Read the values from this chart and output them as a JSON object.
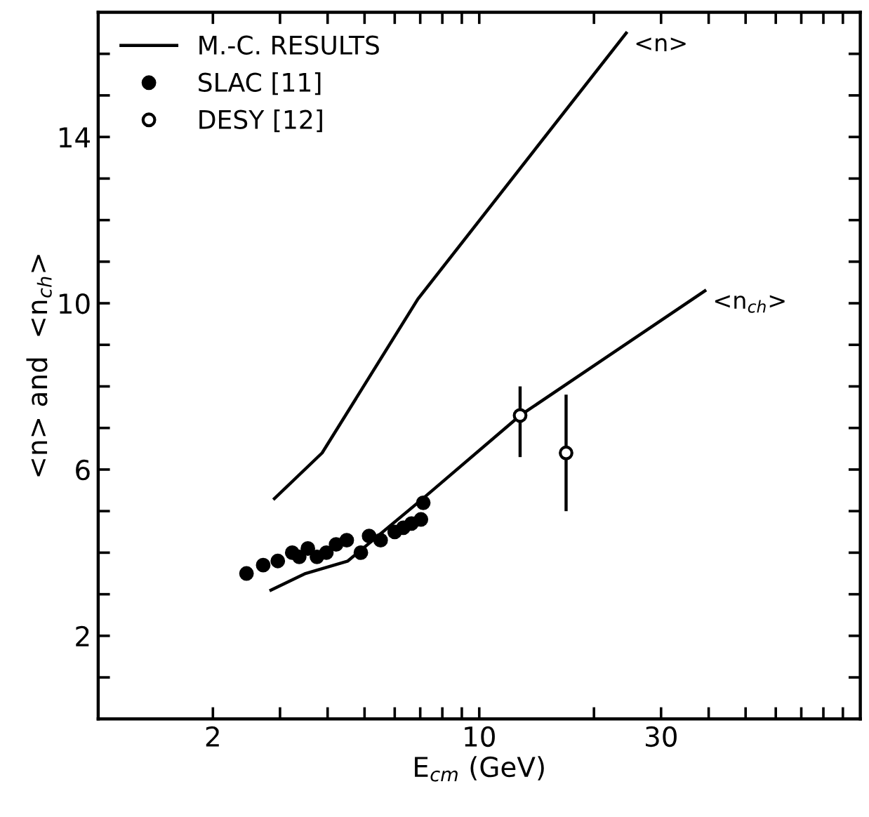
{
  "chart_data": {
    "type": "line",
    "xlabel": "E$_{cm}$ (GeV)",
    "ylabel": "<n> and  <n$_{ch}$>",
    "log": "x",
    "xlim": [
      1,
      100
    ],
    "ylim": [
      0,
      17
    ],
    "xticks": [
      {
        "value": 2,
        "label": "2"
      },
      {
        "value": 3,
        "label": null
      },
      {
        "value": 4,
        "label": null
      },
      {
        "value": 5,
        "label": null
      },
      {
        "value": 6,
        "label": null
      },
      {
        "value": 7,
        "label": null
      },
      {
        "value": 8,
        "label": null
      },
      {
        "value": 9,
        "label": null
      },
      {
        "value": 10,
        "label": "10"
      },
      {
        "value": 20,
        "label": null
      },
      {
        "value": 30,
        "label": "30"
      },
      {
        "value": 40,
        "label": null
      },
      {
        "value": 50,
        "label": null
      },
      {
        "value": 60,
        "label": null
      },
      {
        "value": 70,
        "label": null
      },
      {
        "value": 80,
        "label": null
      },
      {
        "value": 90,
        "label": null
      }
    ],
    "yticks": [
      {
        "value": 1,
        "label": null
      },
      {
        "value": 2,
        "label": "2"
      },
      {
        "value": 3,
        "label": null
      },
      {
        "value": 4,
        "label": null
      },
      {
        "value": 5,
        "label": null
      },
      {
        "value": 6,
        "label": "6"
      },
      {
        "value": 7,
        "label": null
      },
      {
        "value": 8,
        "label": null
      },
      {
        "value": 9,
        "label": null
      },
      {
        "value": 10,
        "label": "10"
      },
      {
        "value": 11,
        "label": null
      },
      {
        "value": 12,
        "label": null
      },
      {
        "value": 13,
        "label": null
      },
      {
        "value": 14,
        "label": "14"
      },
      {
        "value": 15,
        "label": null
      },
      {
        "value": 16,
        "label": null
      }
    ],
    "grid": false,
    "legend": "top left",
    "series": [
      {
        "name": "M.-C. RESULTS",
        "color": "#000000",
        "x": [
          2.9,
          3.87,
          6.9,
          24.3
        ],
        "values": [
          5.3,
          6.4,
          10.1,
          16.5
        ]
      },
      {
        "color": "#000000",
        "x": [
          2.84,
          3.5,
          4.52,
          7.11,
          12.8,
          39.1
        ],
        "values": [
          3.1,
          3.5,
          3.8,
          5.3,
          7.3,
          10.3
        ]
      },
      {
        "type": "scatter",
        "name": "SLAC [11]",
        "color": "#000000",
        "marker": "circle",
        "x": [
          2.45,
          2.71,
          2.96,
          3.23,
          3.37,
          3.55,
          3.75,
          3.97,
          4.21,
          4.49,
          4.89,
          5.14,
          5.51,
          6.0,
          6.32,
          6.64,
          7.03,
          7.13
        ],
        "values": [
          3.5,
          3.7,
          3.8,
          4.0,
          3.9,
          4.1,
          3.9,
          4.0,
          4.2,
          4.3,
          4.0,
          4.4,
          4.3,
          4.5,
          4.6,
          4.7,
          4.8,
          5.2
        ]
      },
      {
        "type": "scatter",
        "name": "DESY [12]",
        "color": "#000000",
        "marker": "open circle",
        "x": [
          12.8,
          16.9
        ],
        "values": [
          7.3,
          6.4
        ],
        "errors": [
          [
            6.3,
            8.0
          ],
          [
            5.0,
            7.8
          ]
        ]
      }
    ],
    "annotations": [
      {
        "text": "<n>",
        "x": 24.3,
        "y": 16.5
      },
      {
        "text": "<n$_{ch}$>",
        "x": 39.1,
        "y": 10.3
      }
    ]
  }
}
